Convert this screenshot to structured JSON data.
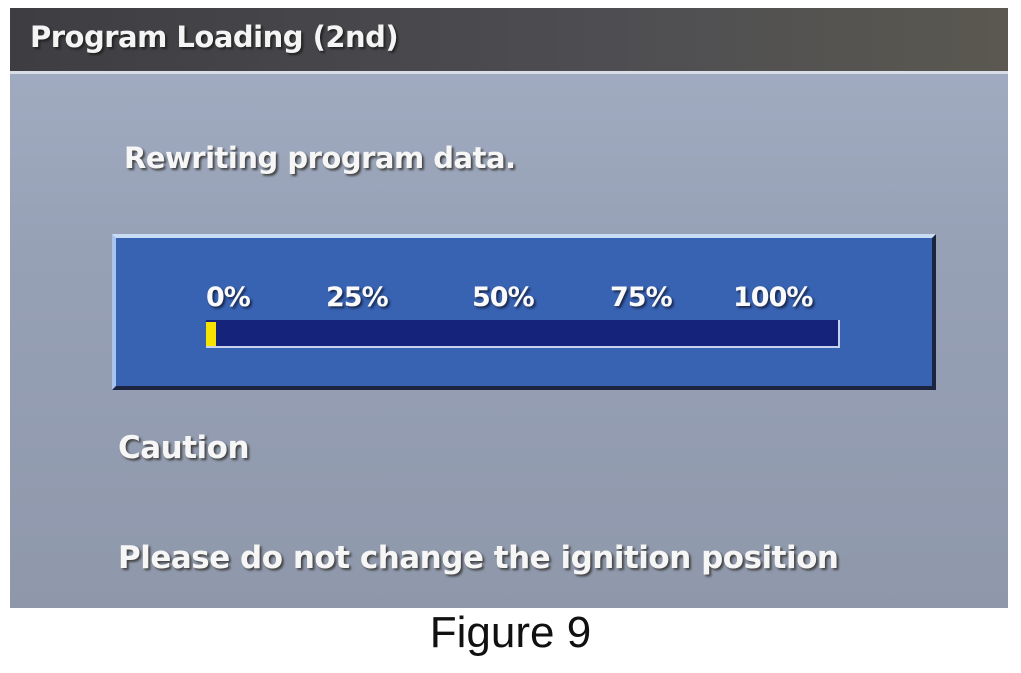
{
  "header": {
    "title": "Program Loading (2nd)"
  },
  "status_message": "Rewriting program data.",
  "progress": {
    "labels": [
      "0%",
      "25%",
      "50%",
      "75%",
      "100%"
    ],
    "value_percent": 1.5,
    "fill_color": "#f6e400",
    "track_color": "#16237a"
  },
  "caution": {
    "heading": "Caution",
    "message": "Please do not change the ignition position"
  },
  "figure_caption": "Figure 9"
}
